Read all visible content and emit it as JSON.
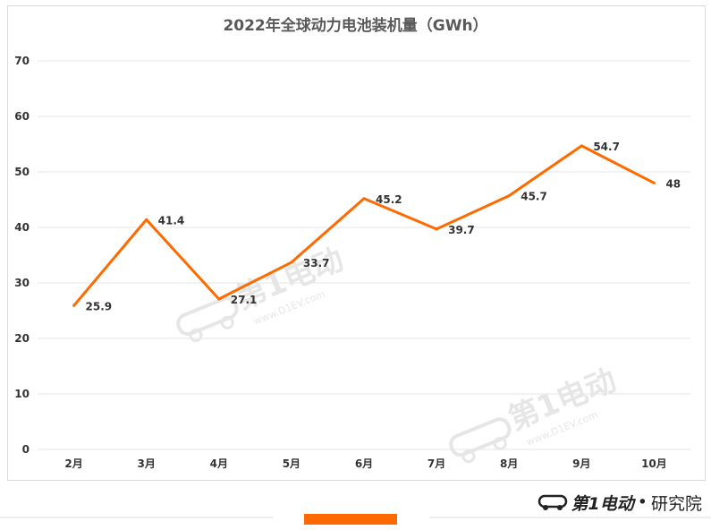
{
  "chart_data": {
    "type": "line",
    "title": "2022年全球动力电池装机量（GWh）",
    "categories": [
      "2月",
      "3月",
      "4月",
      "5月",
      "6月",
      "7月",
      "8月",
      "9月",
      "10月"
    ],
    "series": [
      {
        "values": [
          25.9,
          41.4,
          27.1,
          33.7,
          45.2,
          39.7,
          45.7,
          54.7,
          48
        ],
        "color": "#ff6a00"
      }
    ],
    "data_labels": [
      "25.9",
      "41.4",
      "27.1",
      "33.7",
      "45.2",
      "39.7",
      "45.7",
      "54.7",
      "48"
    ],
    "ylim": [
      0,
      70
    ],
    "yticks": [
      "0",
      "10",
      "20",
      "30",
      "40",
      "50",
      "60",
      "70"
    ],
    "grid": true,
    "xlabel": "",
    "ylabel": ""
  },
  "watermark": {
    "text": "第1电动",
    "url": "www.D1EV.com"
  },
  "footer": {
    "logo_text": "第1电动",
    "separator": "•",
    "suffix": "研究院"
  },
  "colors": {
    "accent": "#ff6a00",
    "grid": "#e6e6e6",
    "text": "#333333"
  }
}
